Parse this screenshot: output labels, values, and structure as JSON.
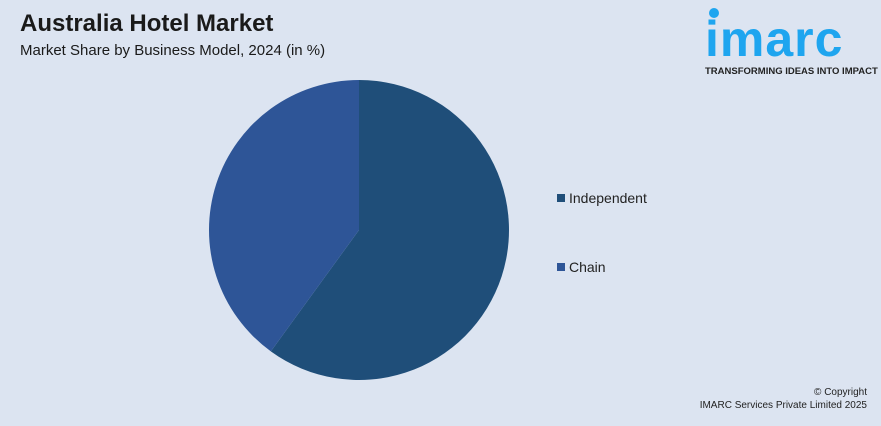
{
  "header": {
    "title": "Australia Hotel Market",
    "subtitle": "Market Share by Business Model, 2024 (in %)"
  },
  "logo": {
    "text": "imarc",
    "tagline": "TRANSFORMING IDEAS INTO IMPACT",
    "color": "#1ea5ef"
  },
  "footer": {
    "line1": "© Copyright",
    "line2": "IMARC Services Private Limited 2025"
  },
  "chart_data": {
    "type": "pie",
    "title": "Australia Hotel Market",
    "subtitle": "Market Share by Business Model, 2024 (in %)",
    "categories": [
      "Independent",
      "Chain"
    ],
    "values": [
      60,
      40
    ],
    "colors": [
      "#1f4e79",
      "#2e5597"
    ],
    "legend_position": "right",
    "start_angle_deg": 0,
    "direction": "clockwise"
  }
}
